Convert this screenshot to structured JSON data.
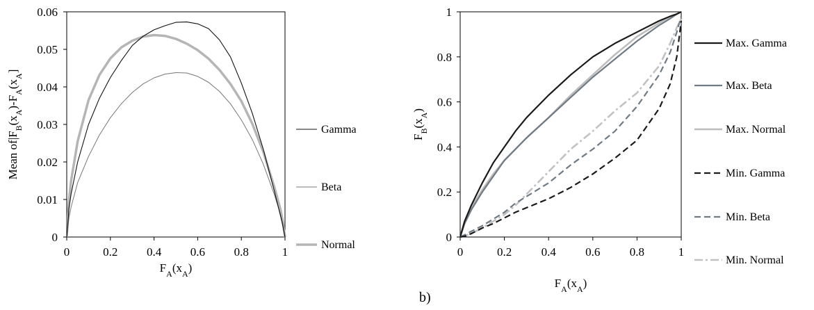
{
  "panel_label": "b)",
  "chart_data": [
    {
      "type": "line",
      "title": "",
      "xlabel_parts": [
        "F",
        "A",
        "(x",
        "A",
        ")"
      ],
      "ylabel_parts": [
        "Mean of|F",
        "B",
        "(x",
        "A",
        ")-F",
        "A",
        "(x",
        "A",
        "]"
      ],
      "xlim": [
        0,
        1
      ],
      "ylim": [
        0,
        0.06
      ],
      "xticks": [
        0,
        0.2,
        0.4,
        0.6,
        0.8,
        1
      ],
      "xtick_labels": [
        "0",
        "0.2",
        "0.4",
        "0.6",
        "0.8",
        "1"
      ],
      "yticks": [
        0,
        0.01,
        0.02,
        0.03,
        0.04,
        0.05,
        0.06
      ],
      "ytick_labels": [
        "0",
        "0.01",
        "0.02",
        "0.03",
        "0.04",
        "0.05",
        "0.06"
      ],
      "grid": false,
      "legend_position": "right",
      "x": [
        0,
        0.01,
        0.02,
        0.05,
        0.1,
        0.15,
        0.2,
        0.25,
        0.3,
        0.35,
        0.4,
        0.45,
        0.5,
        0.55,
        0.6,
        0.65,
        0.7,
        0.75,
        0.8,
        0.85,
        0.9,
        0.95,
        0.98,
        0.99,
        1
      ],
      "series": [
        {
          "name": "Gamma",
          "color": "#111111",
          "width": 1.1,
          "dash": "",
          "values": [
            0,
            0.0075,
            0.0115,
            0.02,
            0.03,
            0.037,
            0.0425,
            0.047,
            0.051,
            0.0535,
            0.0552,
            0.0563,
            0.0572,
            0.0573,
            0.0568,
            0.0555,
            0.0525,
            0.048,
            0.041,
            0.033,
            0.0235,
            0.0125,
            0.0055,
            0.003,
            0
          ]
        },
        {
          "name": "Beta",
          "color": "#777777",
          "width": 1,
          "dash": "",
          "values": [
            0,
            0.005,
            0.008,
            0.0145,
            0.0215,
            0.0272,
            0.0318,
            0.0355,
            0.0385,
            0.0408,
            0.0424,
            0.0434,
            0.0438,
            0.0437,
            0.0428,
            0.0412,
            0.0388,
            0.0355,
            0.0312,
            0.026,
            0.0195,
            0.0115,
            0.006,
            0.0035,
            0
          ]
        },
        {
          "name": "Normal",
          "color": "#b5b5b5",
          "width": 3.5,
          "dash": "",
          "values": [
            0,
            0.0095,
            0.015,
            0.0255,
            0.0365,
            0.0432,
            0.0476,
            0.0505,
            0.0523,
            0.0534,
            0.0538,
            0.0536,
            0.0528,
            0.0515,
            0.0498,
            0.0475,
            0.0445,
            0.0408,
            0.0362,
            0.0302,
            0.0228,
            0.0135,
            0.0072,
            0.004,
            0
          ]
        }
      ]
    },
    {
      "type": "line",
      "title": "",
      "xlabel_parts": [
        "F",
        "A",
        "(x",
        "A",
        ")"
      ],
      "ylabel_parts": [
        "F",
        "B",
        "(x",
        "A",
        ")"
      ],
      "xlim": [
        0,
        1
      ],
      "ylim": [
        0,
        1
      ],
      "xticks": [
        0,
        0.2,
        0.4,
        0.6,
        0.8,
        1
      ],
      "xtick_labels": [
        "0",
        "0.2",
        "0.4",
        "0.6",
        "0.8",
        "1"
      ],
      "yticks": [
        0,
        0.2,
        0.4,
        0.6,
        0.8,
        1
      ],
      "ytick_labels": [
        "0",
        "0.2",
        "0.4",
        "0.6",
        "0.8",
        "1"
      ],
      "grid": false,
      "legend_position": "right",
      "x": [
        0,
        0.02,
        0.05,
        0.1,
        0.15,
        0.2,
        0.25,
        0.3,
        0.4,
        0.5,
        0.6,
        0.7,
        0.8,
        0.9,
        0.95,
        0.98,
        1
      ],
      "series": [
        {
          "name": "Max. Gamma",
          "color": "#1a1a1a",
          "width": 2.2,
          "dash": "",
          "values": [
            0,
            0.07,
            0.14,
            0.24,
            0.33,
            0.4,
            0.47,
            0.53,
            0.63,
            0.72,
            0.8,
            0.86,
            0.91,
            0.96,
            0.98,
            0.99,
            1
          ]
        },
        {
          "name": "Max. Beta",
          "color": "#6f7a84",
          "width": 2.2,
          "dash": "",
          "values": [
            0,
            0.06,
            0.12,
            0.2,
            0.27,
            0.34,
            0.39,
            0.44,
            0.53,
            0.62,
            0.71,
            0.79,
            0.87,
            0.94,
            0.97,
            0.99,
            1
          ]
        },
        {
          "name": "Max. Normal",
          "color": "#bdbdbd",
          "width": 2.6,
          "dash": "",
          "values": [
            0,
            0.07,
            0.13,
            0.21,
            0.28,
            0.34,
            0.39,
            0.44,
            0.53,
            0.63,
            0.72,
            0.81,
            0.89,
            0.95,
            0.98,
            0.99,
            1
          ]
        },
        {
          "name": "Min. Gamma",
          "color": "#1a1a1a",
          "width": 2.2,
          "dash": "9 5",
          "values": [
            0,
            0.003,
            0.015,
            0.04,
            0.06,
            0.085,
            0.11,
            0.13,
            0.17,
            0.22,
            0.28,
            0.35,
            0.43,
            0.57,
            0.68,
            0.8,
            0.96
          ]
        },
        {
          "name": "Min. Beta",
          "color": "#6f7a84",
          "width": 2.2,
          "dash": "9 5",
          "values": [
            0,
            0.01,
            0.025,
            0.05,
            0.08,
            0.11,
            0.15,
            0.18,
            0.24,
            0.32,
            0.39,
            0.47,
            0.58,
            0.72,
            0.82,
            0.91,
            0.98
          ]
        },
        {
          "name": "Min. Normal",
          "color": "#c2c2c2",
          "width": 2.6,
          "dash": "12 4 3 4",
          "values": [
            0,
            0.005,
            0.015,
            0.04,
            0.07,
            0.1,
            0.14,
            0.19,
            0.29,
            0.39,
            0.47,
            0.56,
            0.64,
            0.76,
            0.86,
            0.93,
            0.97
          ]
        }
      ]
    }
  ]
}
